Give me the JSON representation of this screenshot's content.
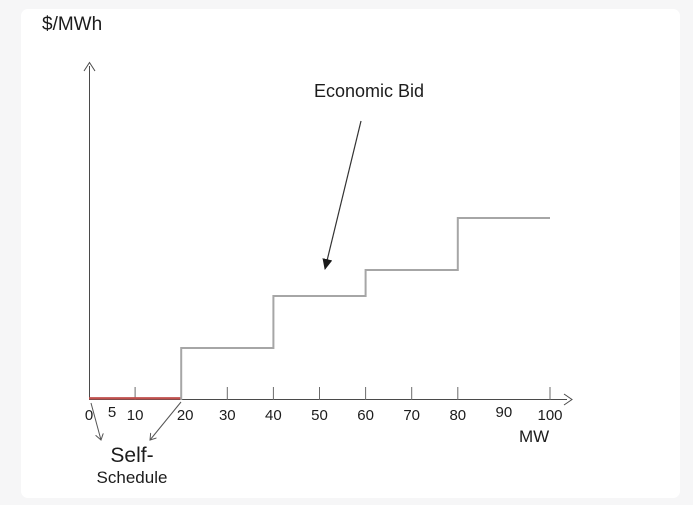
{
  "page": {
    "background_color": "#f6f6f7",
    "canvas_color": "#ffffff"
  },
  "colors": {
    "axis": "#4a4a4a",
    "step_line": "#a6a6a6",
    "self_schedule_red": "#c0504d",
    "text": "#1c1c1c",
    "annotation_arrow": "#333333"
  },
  "annotations": {
    "economic_bid_label": "Economic Bid",
    "self_schedule_label_line1": "Self-",
    "self_schedule_label_line2": "Schedule"
  },
  "chart_data": {
    "type": "step",
    "title": "",
    "xlabel": "MW",
    "ylabel": "$/MWh",
    "xlim": [
      0,
      105
    ],
    "x_ticks": [
      {
        "value": 0,
        "label": "0"
      },
      {
        "value": 5,
        "label": "5"
      },
      {
        "value": 10,
        "label": "10"
      },
      {
        "value": 20,
        "label": "20"
      },
      {
        "value": 30,
        "label": "30"
      },
      {
        "value": 40,
        "label": "40"
      },
      {
        "value": 50,
        "label": "50"
      },
      {
        "value": 60,
        "label": "60"
      },
      {
        "value": 70,
        "label": "70"
      },
      {
        "value": 80,
        "label": "80"
      },
      {
        "value": 90,
        "label": "90"
      },
      {
        "value": 100,
        "label": "100"
      }
    ],
    "tick_marks_mw": [
      10,
      20,
      30,
      40,
      50,
      60,
      70,
      80,
      100
    ],
    "y_axis_numeric_labels": false,
    "series": [
      {
        "name": "Self-Schedule",
        "type": "flat-segment-on-axis",
        "color": "#c0504d",
        "x_range_mw": [
          0,
          20
        ],
        "price_level": 0
      },
      {
        "name": "Economic Bid",
        "type": "step",
        "color": "#a6a6a6",
        "price_units": "relative (y-axis is unlabeled)",
        "steps": [
          {
            "from_mw": 20,
            "to_mw": 40,
            "price_level": 1
          },
          {
            "from_mw": 40,
            "to_mw": 60,
            "price_level": 2
          },
          {
            "from_mw": 60,
            "to_mw": 80,
            "price_level": 2.5
          },
          {
            "from_mw": 80,
            "to_mw": 100,
            "price_level": 3.5
          }
        ]
      }
    ]
  }
}
